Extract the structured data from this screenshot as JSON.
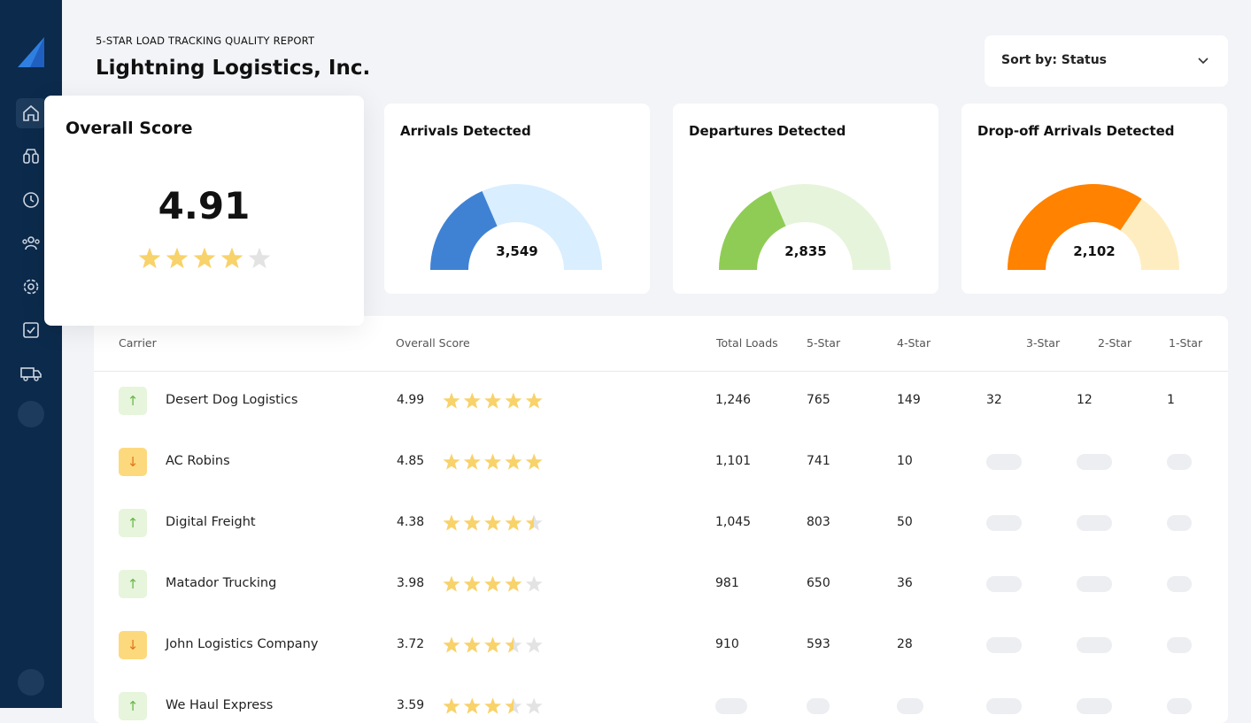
{
  "header": {
    "subtitle": "5-STAR LOAD TRACKING QUALITY REPORT",
    "title": "Lightning Logistics, Inc."
  },
  "sort": "Sort by: Status",
  "overall": {
    "label": "Overall Score",
    "score": "4.91"
  },
  "gauges": [
    {
      "label": "Arrivals Detected",
      "value": "3,549"
    },
    {
      "label": "Departures Detected",
      "value": "2,835"
    },
    {
      "label": "Drop-off Arrivals Detected",
      "value": "2,102"
    }
  ],
  "table": {
    "columns": [
      "Carrier",
      "Overall Score",
      "Total Loads",
      "5-Star",
      "4-Star",
      "3-Star",
      "2-Star",
      "1-Star"
    ],
    "rows": [
      [
        "Desert Dog Logistics",
        "4.99",
        "1,246",
        "765",
        "149",
        "32",
        "12",
        "1"
      ],
      [
        "AC Robins",
        "4.85",
        "1,101",
        "741",
        "10"
      ],
      [
        "Digital Freight",
        "4.38",
        "1,045",
        "803",
        "50"
      ],
      [
        "Matador Trucking",
        "3.98",
        "981",
        "650",
        "36"
      ],
      [
        "John Logistics Company",
        "3.72",
        "910",
        "593",
        "28"
      ],
      [
        "We Haul Express",
        "3.59"
      ]
    ]
  }
}
